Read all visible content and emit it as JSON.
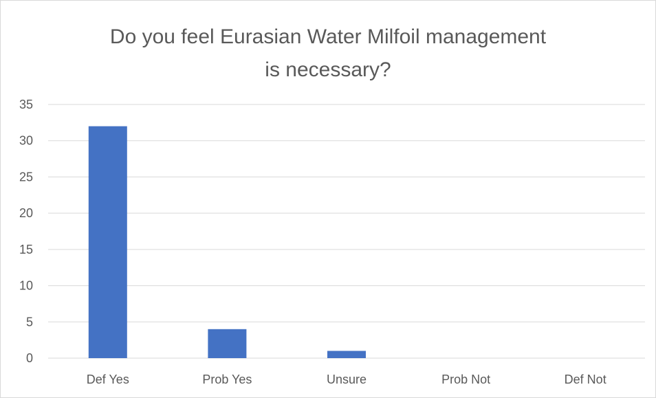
{
  "chart_data": {
    "type": "bar",
    "title": "Do you feel Eurasian Water Milfoil management is necessary?",
    "title_lines": [
      "Do you feel Eurasian Water Milfoil management",
      "is necessary?"
    ],
    "categories": [
      "Def Yes",
      "Prob Yes",
      "Unsure",
      "Prob Not",
      "Def Not"
    ],
    "values": [
      32,
      4,
      1,
      0,
      0
    ],
    "ylim": [
      0,
      35
    ],
    "yticks": [
      0,
      5,
      10,
      15,
      20,
      25,
      30,
      35
    ],
    "xlabel": "",
    "ylabel": "",
    "grid": true,
    "legend": "none",
    "colors": {
      "bar": "#4472c4",
      "grid": "#d9d9d9",
      "text": "#595959"
    }
  }
}
